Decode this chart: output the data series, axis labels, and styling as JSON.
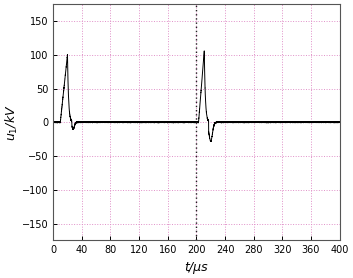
{
  "xlim": [
    0,
    400
  ],
  "ylim": [
    -175,
    175
  ],
  "xticks": [
    0,
    40,
    80,
    120,
    160,
    200,
    240,
    280,
    320,
    360,
    400
  ],
  "yticks": [
    -150,
    -100,
    -50,
    0,
    50,
    100,
    150
  ],
  "xlabel": "t/μs",
  "ylabel": "$u_1$/kV",
  "grid_color": "#e090c8",
  "grid_linestyle": ":",
  "vline_x": 200,
  "vline_color": "#222222",
  "signal_color": "#000000",
  "background_color": "#ffffff",
  "pulse1_rise_start": 10,
  "pulse1_peak_t": 20,
  "pulse1_peak_val": 100,
  "pulse1_fall_end": 26,
  "pulse1_neg_start": 26,
  "pulse1_neg_peak": 28,
  "pulse1_neg_val": -10,
  "pulse1_neg_end": 60,
  "pulse2_rise_start": 203,
  "pulse2_peak_t": 211,
  "pulse2_peak_val": 106,
  "pulse2_fall_end": 217,
  "pulse2_neg_start": 217,
  "pulse2_neg_peak": 220,
  "pulse2_neg_val": -28,
  "pulse2_neg_end": 260
}
